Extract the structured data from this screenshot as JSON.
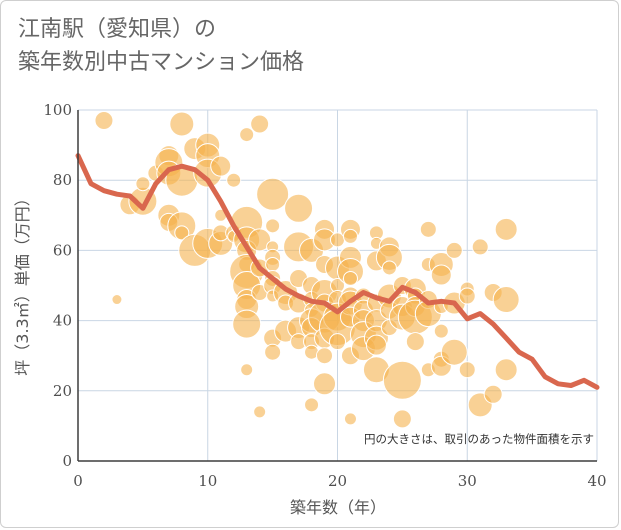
{
  "title": {
    "line1": "江南駅（愛知県）の",
    "line2": "築年数別中古マンション価格"
  },
  "chart_data": {
    "type": "scatter",
    "title": "江南駅（愛知県）の 築年数別中古マンション価格",
    "xlabel": "築年数（年）",
    "ylabel": "坪（3.3㎡）単価（万円）",
    "annotation": "円の大きさは、取引のあった物件面積を示す",
    "xlim": [
      0,
      40
    ],
    "ylim": [
      0,
      100
    ],
    "x_ticks": [
      0,
      10,
      20,
      30,
      40
    ],
    "y_ticks": [
      0,
      20,
      40,
      60,
      80,
      100
    ],
    "grid": true,
    "bubble_color": "#f5b34e",
    "line_color": "#d9674e",
    "series": [
      {
        "type": "line",
        "x": [
          0,
          1,
          2,
          3,
          4,
          5,
          6,
          7,
          8,
          9,
          10,
          11,
          12,
          13,
          14,
          15,
          16,
          17,
          18,
          19,
          20,
          21,
          22,
          23,
          24,
          25,
          26,
          27,
          28,
          29,
          30,
          31,
          32,
          33,
          34,
          35,
          36,
          37,
          38,
          39,
          40
        ],
        "y": [
          87,
          79,
          77,
          76,
          75.5,
          72,
          79,
          83,
          84,
          83,
          80,
          74,
          67,
          61,
          55,
          52,
          49,
          47,
          45.5,
          45,
          42.5,
          45.5,
          48,
          46.5,
          45.5,
          49.5,
          48,
          45,
          45.5,
          45,
          40.5,
          42,
          39,
          35,
          31,
          29,
          24,
          22,
          21.5,
          23,
          21
        ]
      },
      {
        "type": "bubble",
        "points": [
          {
            "x": 2,
            "y": 97,
            "s": 9
          },
          {
            "x": 3,
            "y": 46,
            "s": 5
          },
          {
            "x": 4,
            "y": 73,
            "s": 10
          },
          {
            "x": 5,
            "y": 74,
            "s": 14
          },
          {
            "x": 5,
            "y": 79,
            "s": 7
          },
          {
            "x": 6,
            "y": 82,
            "s": 8
          },
          {
            "x": 7,
            "y": 87,
            "s": 10
          },
          {
            "x": 7,
            "y": 85,
            "s": 14
          },
          {
            "x": 7,
            "y": 82,
            "s": 12
          },
          {
            "x": 7,
            "y": 70,
            "s": 11
          },
          {
            "x": 7,
            "y": 68,
            "s": 9
          },
          {
            "x": 8,
            "y": 96,
            "s": 12
          },
          {
            "x": 8,
            "y": 80,
            "s": 16
          },
          {
            "x": 8,
            "y": 67,
            "s": 14
          },
          {
            "x": 8,
            "y": 65,
            "s": 7
          },
          {
            "x": 9,
            "y": 89,
            "s": 11
          },
          {
            "x": 9,
            "y": 60,
            "s": 16
          },
          {
            "x": 10,
            "y": 90,
            "s": 12
          },
          {
            "x": 10,
            "y": 87,
            "s": 12
          },
          {
            "x": 10,
            "y": 82,
            "s": 14
          },
          {
            "x": 10,
            "y": 62,
            "s": 15
          },
          {
            "x": 11,
            "y": 84,
            "s": 10
          },
          {
            "x": 11,
            "y": 70,
            "s": 6
          },
          {
            "x": 11,
            "y": 62,
            "s": 12
          },
          {
            "x": 11,
            "y": 65,
            "s": 8
          },
          {
            "x": 12,
            "y": 80,
            "s": 7
          },
          {
            "x": 12,
            "y": 65,
            "s": 8
          },
          {
            "x": 12,
            "y": 64,
            "s": 6
          },
          {
            "x": 13,
            "y": 93,
            "s": 7
          },
          {
            "x": 13,
            "y": 68,
            "s": 16
          },
          {
            "x": 13,
            "y": 63,
            "s": 13
          },
          {
            "x": 13,
            "y": 60,
            "s": 10
          },
          {
            "x": 13,
            "y": 56,
            "s": 8
          },
          {
            "x": 13,
            "y": 54,
            "s": 17
          },
          {
            "x": 13,
            "y": 50,
            "s": 14
          },
          {
            "x": 13,
            "y": 46,
            "s": 10
          },
          {
            "x": 13,
            "y": 44,
            "s": 12
          },
          {
            "x": 13,
            "y": 39,
            "s": 14
          },
          {
            "x": 13,
            "y": 26,
            "s": 6
          },
          {
            "x": 14,
            "y": 96,
            "s": 9
          },
          {
            "x": 14,
            "y": 63,
            "s": 11
          },
          {
            "x": 14,
            "y": 55,
            "s": 9
          },
          {
            "x": 14,
            "y": 48,
            "s": 8
          },
          {
            "x": 14,
            "y": 14,
            "s": 6
          },
          {
            "x": 15,
            "y": 76,
            "s": 16
          },
          {
            "x": 15,
            "y": 67,
            "s": 7
          },
          {
            "x": 15,
            "y": 61,
            "s": 6
          },
          {
            "x": 15,
            "y": 58,
            "s": 8
          },
          {
            "x": 15,
            "y": 56,
            "s": 7
          },
          {
            "x": 15,
            "y": 52,
            "s": 8
          },
          {
            "x": 15,
            "y": 50,
            "s": 9
          },
          {
            "x": 15,
            "y": 47,
            "s": 6
          },
          {
            "x": 15,
            "y": 35,
            "s": 9
          },
          {
            "x": 15,
            "y": 31,
            "s": 8
          },
          {
            "x": 16,
            "y": 48,
            "s": 12
          },
          {
            "x": 16,
            "y": 45,
            "s": 8
          },
          {
            "x": 16,
            "y": 37,
            "s": 11
          },
          {
            "x": 17,
            "y": 72,
            "s": 14
          },
          {
            "x": 17,
            "y": 61,
            "s": 15
          },
          {
            "x": 17,
            "y": 52,
            "s": 9
          },
          {
            "x": 17,
            "y": 45,
            "s": 10
          },
          {
            "x": 17,
            "y": 38,
            "s": 11
          },
          {
            "x": 17,
            "y": 34,
            "s": 8
          },
          {
            "x": 18,
            "y": 60,
            "s": 12
          },
          {
            "x": 18,
            "y": 50,
            "s": 9
          },
          {
            "x": 18,
            "y": 46,
            "s": 8
          },
          {
            "x": 18,
            "y": 43,
            "s": 7
          },
          {
            "x": 18,
            "y": 40,
            "s": 12
          },
          {
            "x": 18,
            "y": 38,
            "s": 10
          },
          {
            "x": 18,
            "y": 34,
            "s": 8
          },
          {
            "x": 18,
            "y": 31,
            "s": 7
          },
          {
            "x": 18,
            "y": 16,
            "s": 7
          },
          {
            "x": 19,
            "y": 66,
            "s": 10
          },
          {
            "x": 19,
            "y": 63,
            "s": 11
          },
          {
            "x": 19,
            "y": 56,
            "s": 9
          },
          {
            "x": 19,
            "y": 48,
            "s": 13
          },
          {
            "x": 19,
            "y": 45,
            "s": 9
          },
          {
            "x": 19,
            "y": 41,
            "s": 16
          },
          {
            "x": 19,
            "y": 35,
            "s": 10
          },
          {
            "x": 19,
            "y": 30,
            "s": 8
          },
          {
            "x": 19,
            "y": 22,
            "s": 11
          },
          {
            "x": 20,
            "y": 63,
            "s": 7
          },
          {
            "x": 20,
            "y": 55,
            "s": 12
          },
          {
            "x": 20,
            "y": 50,
            "s": 7
          },
          {
            "x": 20,
            "y": 46,
            "s": 9
          },
          {
            "x": 20,
            "y": 41,
            "s": 14
          },
          {
            "x": 20,
            "y": 38,
            "s": 18
          },
          {
            "x": 20,
            "y": 34,
            "s": 8
          },
          {
            "x": 21,
            "y": 66,
            "s": 10
          },
          {
            "x": 21,
            "y": 64,
            "s": 7
          },
          {
            "x": 21,
            "y": 58,
            "s": 11
          },
          {
            "x": 21,
            "y": 54,
            "s": 13
          },
          {
            "x": 21,
            "y": 52,
            "s": 7
          },
          {
            "x": 21,
            "y": 47,
            "s": 9
          },
          {
            "x": 21,
            "y": 45,
            "s": 12
          },
          {
            "x": 21,
            "y": 41,
            "s": 10
          },
          {
            "x": 21,
            "y": 30,
            "s": 9
          },
          {
            "x": 21,
            "y": 12,
            "s": 6
          },
          {
            "x": 22,
            "y": 47,
            "s": 8
          },
          {
            "x": 22,
            "y": 43,
            "s": 10
          },
          {
            "x": 22,
            "y": 40,
            "s": 11
          },
          {
            "x": 22,
            "y": 36,
            "s": 13
          },
          {
            "x": 22,
            "y": 32,
            "s": 12
          },
          {
            "x": 23,
            "y": 65,
            "s": 7
          },
          {
            "x": 23,
            "y": 62,
            "s": 6
          },
          {
            "x": 23,
            "y": 57,
            "s": 10
          },
          {
            "x": 23,
            "y": 45,
            "s": 9
          },
          {
            "x": 23,
            "y": 40,
            "s": 11
          },
          {
            "x": 23,
            "y": 35,
            "s": 12
          },
          {
            "x": 23,
            "y": 33,
            "s": 10
          },
          {
            "x": 23,
            "y": 26,
            "s": 13
          },
          {
            "x": 24,
            "y": 61,
            "s": 10
          },
          {
            "x": 24,
            "y": 58,
            "s": 13
          },
          {
            "x": 24,
            "y": 55,
            "s": 7
          },
          {
            "x": 24,
            "y": 47,
            "s": 12
          },
          {
            "x": 24,
            "y": 43,
            "s": 9
          },
          {
            "x": 24,
            "y": 38,
            "s": 8
          },
          {
            "x": 25,
            "y": 50,
            "s": 9
          },
          {
            "x": 25,
            "y": 44,
            "s": 10
          },
          {
            "x": 25,
            "y": 41,
            "s": 13
          },
          {
            "x": 25,
            "y": 23,
            "s": 19
          },
          {
            "x": 25,
            "y": 12,
            "s": 9
          },
          {
            "x": 26,
            "y": 49,
            "s": 11
          },
          {
            "x": 26,
            "y": 47,
            "s": 8
          },
          {
            "x": 26,
            "y": 44,
            "s": 10
          },
          {
            "x": 26,
            "y": 41,
            "s": 17
          },
          {
            "x": 26,
            "y": 34,
            "s": 9
          },
          {
            "x": 27,
            "y": 66,
            "s": 8
          },
          {
            "x": 27,
            "y": 56,
            "s": 7
          },
          {
            "x": 27,
            "y": 46,
            "s": 9
          },
          {
            "x": 27,
            "y": 42,
            "s": 13
          },
          {
            "x": 27,
            "y": 26,
            "s": 7
          },
          {
            "x": 28,
            "y": 56,
            "s": 12
          },
          {
            "x": 28,
            "y": 53,
            "s": 10
          },
          {
            "x": 28,
            "y": 44,
            "s": 7
          },
          {
            "x": 28,
            "y": 37,
            "s": 7
          },
          {
            "x": 28,
            "y": 29,
            "s": 8
          },
          {
            "x": 28,
            "y": 27,
            "s": 10
          },
          {
            "x": 29,
            "y": 60,
            "s": 8
          },
          {
            "x": 29,
            "y": 45,
            "s": 11
          },
          {
            "x": 29,
            "y": 31,
            "s": 13
          },
          {
            "x": 30,
            "y": 49,
            "s": 7
          },
          {
            "x": 30,
            "y": 47,
            "s": 8
          },
          {
            "x": 30,
            "y": 26,
            "s": 8
          },
          {
            "x": 31,
            "y": 61,
            "s": 8
          },
          {
            "x": 31,
            "y": 16,
            "s": 12
          },
          {
            "x": 32,
            "y": 48,
            "s": 9
          },
          {
            "x": 32,
            "y": 19,
            "s": 9
          },
          {
            "x": 33,
            "y": 66,
            "s": 11
          },
          {
            "x": 33,
            "y": 46,
            "s": 13
          },
          {
            "x": 33,
            "y": 26,
            "s": 11
          }
        ]
      }
    ]
  }
}
